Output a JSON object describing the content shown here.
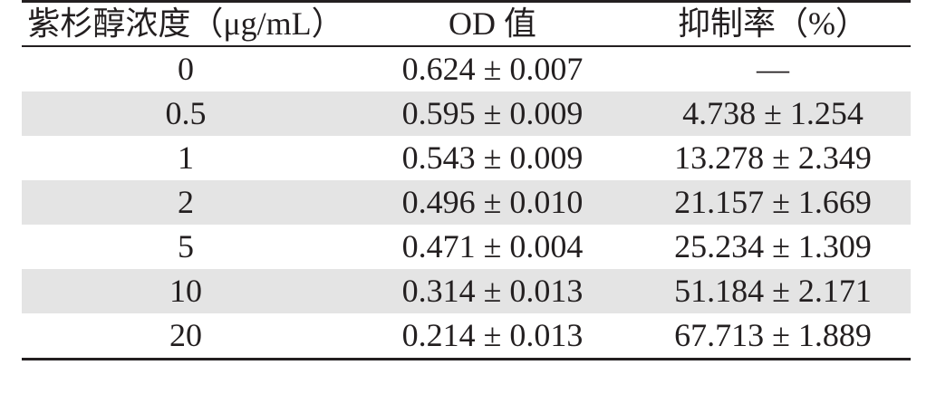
{
  "table": {
    "headers": [
      "紫杉醇浓度（μg/mL）",
      "OD 值",
      "抑制率（%）"
    ],
    "rows": [
      {
        "concentration": "0",
        "od": "0.624 ± 0.007",
        "inhibition": "—"
      },
      {
        "concentration": "0.5",
        "od": "0.595 ± 0.009",
        "inhibition": "4.738 ± 1.254"
      },
      {
        "concentration": "1",
        "od": "0.543 ± 0.009",
        "inhibition": "13.278 ± 2.349"
      },
      {
        "concentration": "2",
        "od": "0.496 ± 0.010",
        "inhibition": "21.157 ± 1.669"
      },
      {
        "concentration": "5",
        "od": "0.471 ± 0.004",
        "inhibition": "25.234 ± 1.309"
      },
      {
        "concentration": "10",
        "od": "0.314 ± 0.013",
        "inhibition": "51.184 ± 2.171"
      },
      {
        "concentration": "20",
        "od": "0.214 ± 0.013",
        "inhibition": "67.713 ± 1.889"
      }
    ],
    "colors": {
      "text": "#231f20",
      "rule": "#231f20",
      "shade": "#e4e4e4"
    }
  }
}
